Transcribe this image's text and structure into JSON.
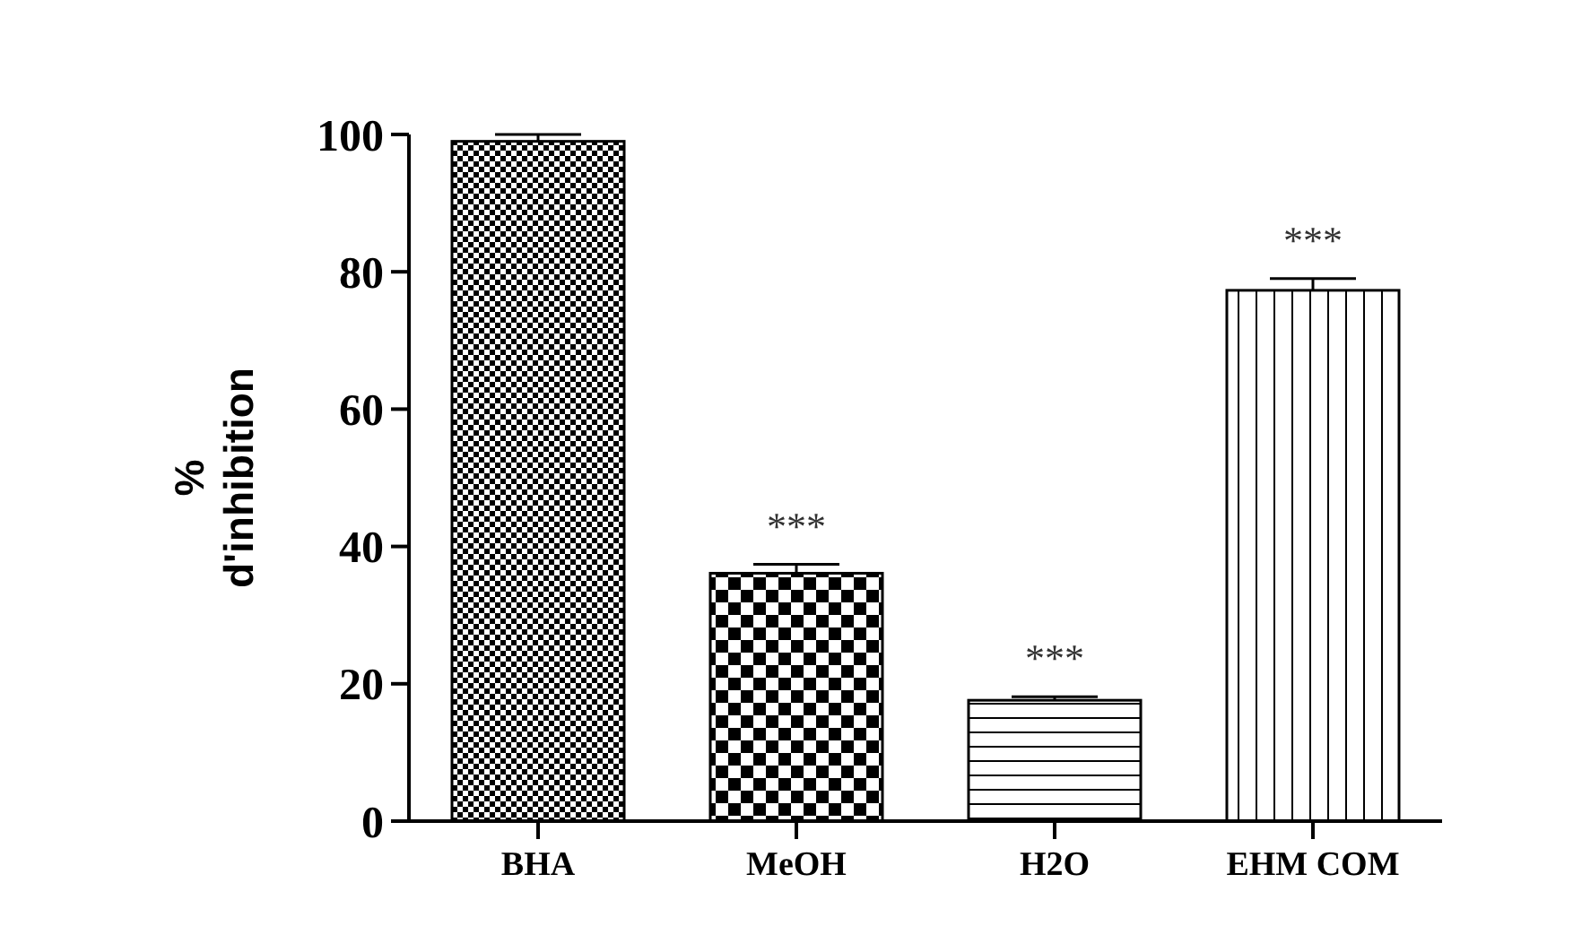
{
  "chart_data": {
    "type": "bar",
    "ylabel": "% d'inhibition",
    "categories": [
      "BHA",
      "MeOH",
      "H2O",
      "EHM COM"
    ],
    "values": [
      99.0,
      36.1,
      17.6,
      77.3
    ],
    "errors": [
      1.0,
      1.3,
      0.5,
      1.7
    ],
    "colors": [
      "#000000",
      "#000000",
      "#000000",
      "#000000"
    ],
    "ylim": [
      0,
      100
    ],
    "yticks": [
      0,
      20,
      40,
      60,
      80,
      100
    ],
    "annotations": [
      {
        "text": "***",
        "x": "MeOH",
        "y": 37.4
      },
      {
        "text": "***",
        "x": "H2O",
        "y": 18.1
      },
      {
        "text": "***",
        "x": "EHM COM",
        "y": 79.0
      }
    ]
  }
}
